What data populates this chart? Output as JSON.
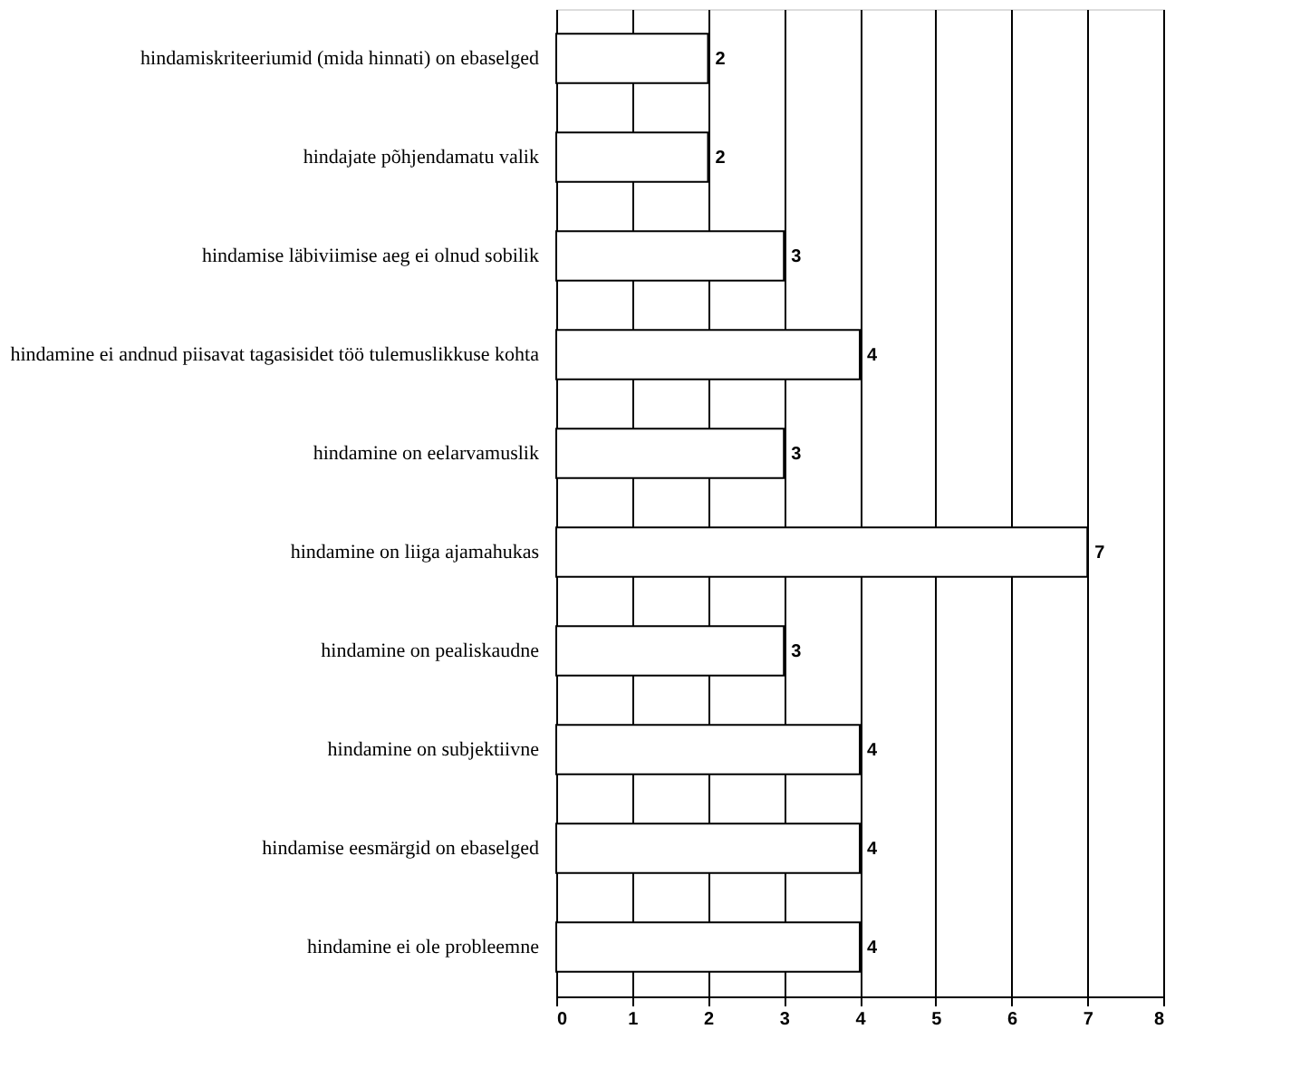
{
  "chart_data": {
    "type": "bar",
    "orientation": "horizontal",
    "categories": [
      "hindamiskriteeriumid (mida hinnati) on ebaselged",
      "hindajate põhjendamatu valik",
      "hindamise läbiviimise aeg ei olnud sobilik",
      "hindamine ei andnud piisavat tagasisidet töö tulemuslikkuse kohta",
      "hindamine on eelarvamuslik",
      "hindamine on liiga ajamahukas",
      "hindamine on pealiskaudne",
      "hindamine on subjektiivne",
      "hindamise eesmärgid on ebaselged",
      "hindamine ei ole probleemne"
    ],
    "values": [
      2,
      2,
      3,
      4,
      3,
      7,
      3,
      4,
      4,
      4
    ],
    "color": "#ffffff",
    "xlim": [
      0,
      8
    ],
    "xticks": [
      0,
      1,
      2,
      3,
      4,
      5,
      6,
      7,
      8
    ],
    "grid": "x",
    "data_labels": true
  }
}
